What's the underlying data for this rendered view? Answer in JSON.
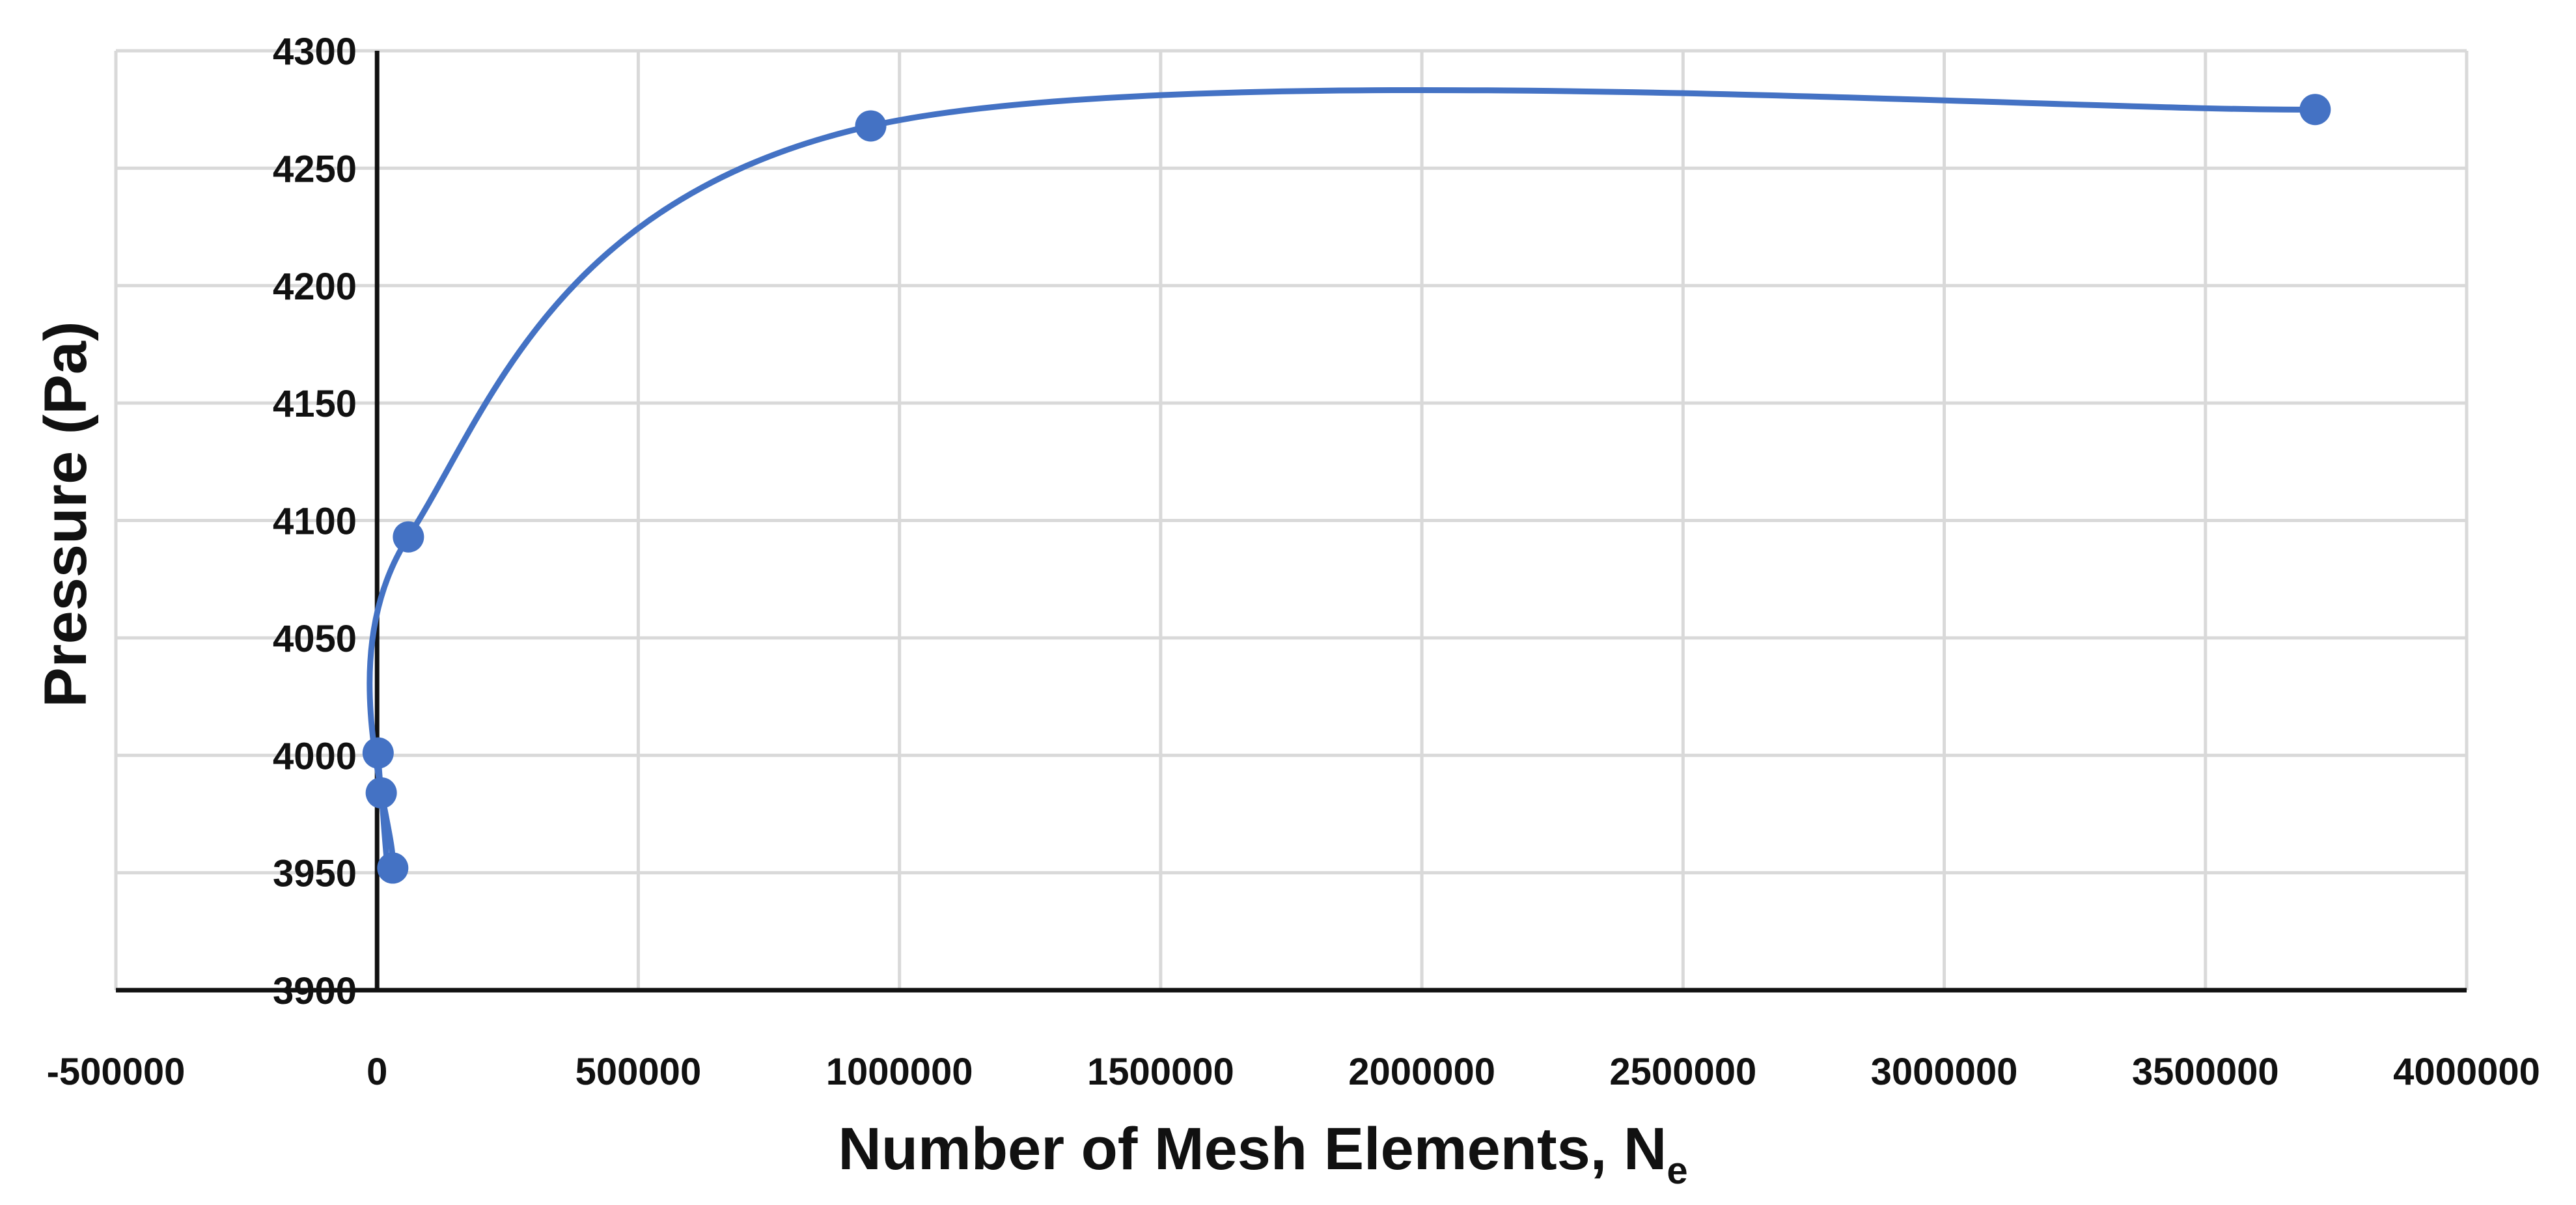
{
  "chart_data": {
    "type": "scatter",
    "title": "",
    "xlabel": "Number of Mesh Elements, N",
    "xlabel_subscript": "e",
    "ylabel": "Pressure (Pa)",
    "xlim": [
      -500000,
      4000000
    ],
    "ylim": [
      3900,
      4300
    ],
    "x_ticks": [
      "-500000",
      "0",
      "500000",
      "1000000",
      "1500000",
      "2000000",
      "2500000",
      "3000000",
      "3500000",
      "4000000"
    ],
    "y_ticks": [
      "3900",
      "3950",
      "4000",
      "4050",
      "4100",
      "4150",
      "4200",
      "4250",
      "4300"
    ],
    "grid": true,
    "smooth_line": true,
    "series": [
      {
        "color": "#4472C4",
        "points": [
          {
            "x": 2000,
            "y": 4001
          },
          {
            "x": 8000,
            "y": 3984
          },
          {
            "x": 30000,
            "y": 3952
          },
          {
            "x": 60000,
            "y": 4093
          },
          {
            "x": 945000,
            "y": 4268
          },
          {
            "x": 3710000,
            "y": 4275
          }
        ]
      }
    ]
  }
}
